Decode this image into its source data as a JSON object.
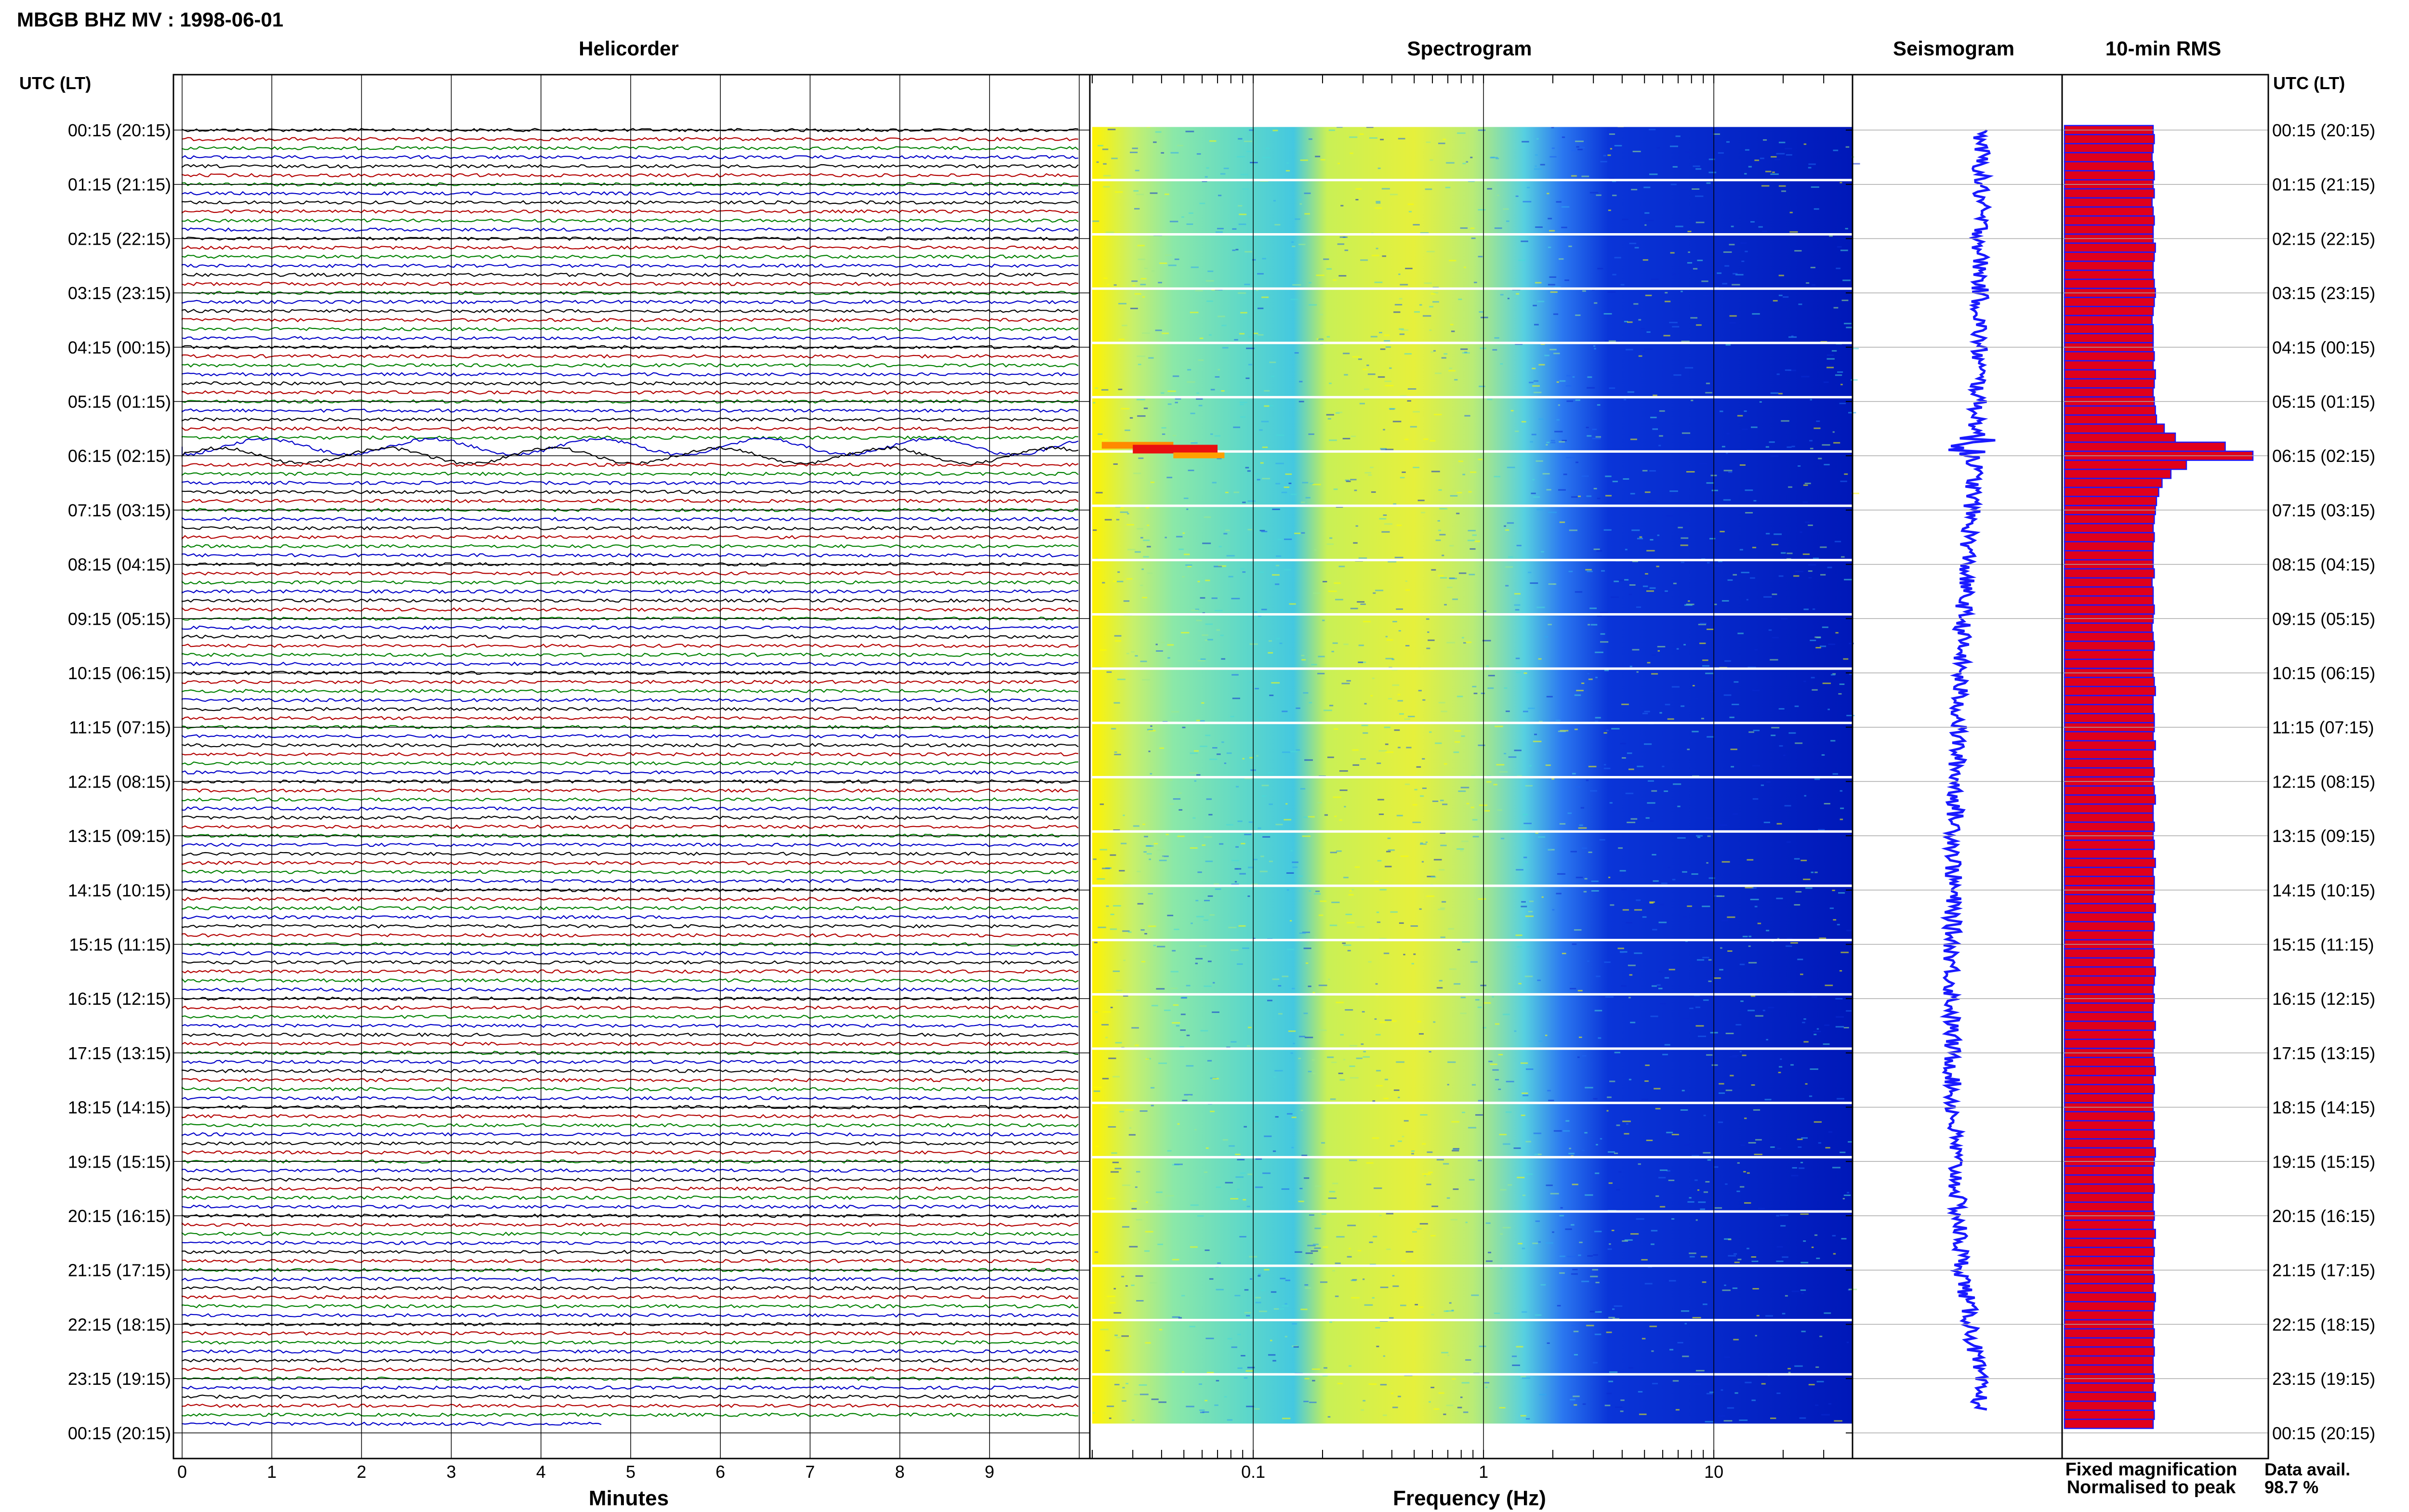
{
  "header": {
    "station": "MBGB BHZ MV : 1998-06-01",
    "utc_label_left": "UTC (LT)",
    "utc_label_right": "UTC (LT)"
  },
  "panels": {
    "helicorder": "Helicorder",
    "spectrogram": "Spectrogram",
    "seismogram": "Seismogram",
    "rms": "10-min RMS"
  },
  "axes": {
    "helicorder_xlabel": "Minutes",
    "spectrogram_xlabel": "Frequency (Hz)",
    "minute_ticks": [
      "0",
      "1",
      "2",
      "3",
      "4",
      "5",
      "6",
      "7",
      "8",
      "9"
    ],
    "freq_ticks": [
      {
        "label": "0.1",
        "hz": 0.1
      },
      {
        "label": "1",
        "hz": 1
      },
      {
        "label": "10",
        "hz": 10
      }
    ]
  },
  "legend": {
    "fixed": "Fixed magnification",
    "normalised": "Normalised to peak",
    "fixed_color": "#0000ff",
    "normalised_color": "#ff0000"
  },
  "availability": {
    "label": "Data avail.",
    "value": "98.7 %"
  },
  "colors": {
    "trace_cycle": [
      "#000000",
      "#b30000",
      "#008000",
      "#0000c8"
    ],
    "rms_fill": "#e0001b",
    "rms_edge": "#1a1aff",
    "seismo": "#1a1aff"
  },
  "chart_data": {
    "type": "helicorder",
    "rows_per_hour": 6,
    "minutes_per_row": 10,
    "freq_range_hz": [
      0.02,
      40
    ],
    "hour_labels": [
      "00:15 (20:15)",
      "01:15 (21:15)",
      "02:15 (22:15)",
      "03:15 (23:15)",
      "04:15 (00:15)",
      "05:15 (01:15)",
      "06:15 (02:15)",
      "07:15 (03:15)",
      "08:15 (04:15)",
      "09:15 (05:15)",
      "10:15 (06:15)",
      "11:15 (07:15)",
      "12:15 (08:15)",
      "13:15 (09:15)",
      "14:15 (10:15)",
      "15:15 (11:15)",
      "16:15 (12:15)",
      "17:15 (13:15)",
      "18:15 (14:15)",
      "19:15 (15:15)",
      "20:15 (16:15)",
      "21:15 (17:15)",
      "22:15 (18:15)",
      "23:15 (19:15)",
      "00:15 (20:15)"
    ],
    "rms_relative": [
      0.8,
      0.81,
      0.8,
      0.79,
      0.8,
      0.81,
      0.8,
      0.81,
      0.79,
      0.8,
      0.81,
      0.8,
      0.8,
      0.82,
      0.81,
      0.8,
      0.8,
      0.81,
      0.82,
      0.81,
      0.8,
      0.79,
      0.8,
      0.8,
      0.8,
      0.81,
      0.8,
      0.82,
      0.81,
      0.8,
      0.81,
      0.82,
      0.83,
      0.9,
      1.0,
      1.45,
      1.7,
      1.1,
      0.96,
      0.88,
      0.85,
      0.83,
      0.82,
      0.81,
      0.8,
      0.81,
      0.8,
      0.8,
      0.8,
      0.81,
      0.79,
      0.8,
      0.8,
      0.81,
      0.8,
      0.79,
      0.8,
      0.81,
      0.8,
      0.8,
      0.8,
      0.81,
      0.82,
      0.8,
      0.8,
      0.81,
      0.81,
      0.8,
      0.82,
      0.8,
      0.8,
      0.81,
      0.8,
      0.81,
      0.82,
      0.8,
      0.8,
      0.81,
      0.8,
      0.81,
      0.8,
      0.82,
      0.8,
      0.81,
      0.81,
      0.8,
      0.82,
      0.8,
      0.81,
      0.8,
      0.8,
      0.81,
      0.8,
      0.82,
      0.81,
      0.8,
      0.81,
      0.8,
      0.8,
      0.82,
      0.8,
      0.81,
      0.8,
      0.81,
      0.82,
      0.8,
      0.81,
      0.8,
      0.8,
      0.81,
      0.8,
      0.81,
      0.8,
      0.82,
      0.81,
      0.8,
      0.8,
      0.81,
      0.8,
      0.8,
      0.81,
      0.8,
      0.82,
      0.8,
      0.81,
      0.8,
      0.8,
      0.81,
      0.8,
      0.82,
      0.81,
      0.8,
      0.8,
      0.81,
      0.8,
      0.81,
      0.8,
      0.8,
      0.81,
      0.8,
      0.82,
      0.8,
      0.81,
      0.8
    ],
    "seismo_offset": [
      0.5,
      0.49,
      0.48,
      0.47,
      0.45,
      0.43,
      0.38,
      0.3,
      0.2,
      0.12,
      0.06,
      0.02,
      -0.02,
      -0.06,
      -0.09,
      -0.11,
      -0.12,
      -0.11,
      -0.09,
      -0.04,
      0.02,
      0.1,
      0.28,
      0.44,
      0.5
    ],
    "event_rows": [
      35,
      36
    ],
    "partial_last_row_minutes": 4.7
  }
}
